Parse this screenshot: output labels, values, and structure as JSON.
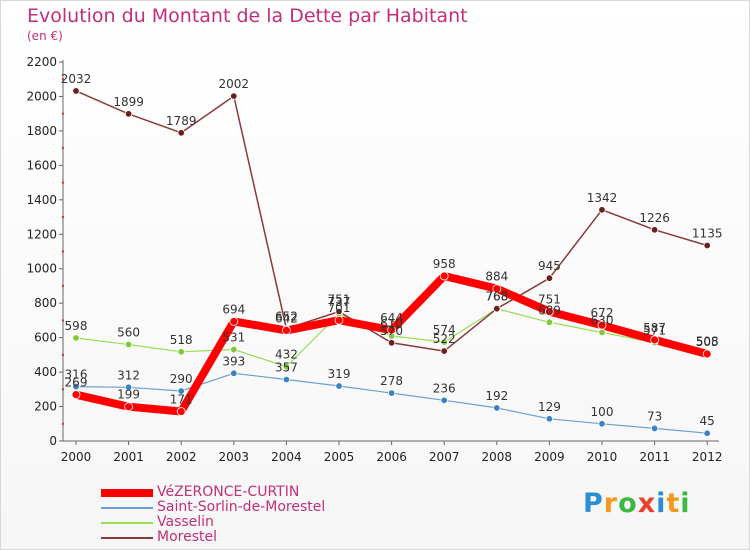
{
  "title": "Evolution du Montant de la Dette par Habitant",
  "subtitle": "(en €)",
  "chart_data": {
    "type": "line",
    "title": "Evolution du Montant de la Dette par Habitant",
    "subtitle": "(en €)",
    "x": [
      "2000",
      "2001",
      "2002",
      "2003",
      "2004",
      "2005",
      "2006",
      "2007",
      "2008",
      "2009",
      "2010",
      "2011",
      "2012"
    ],
    "y_ticks": [
      "0",
      "200",
      "400",
      "600",
      "800",
      "1000",
      "1200",
      "1400",
      "1600",
      "1800",
      "2000",
      "2200"
    ],
    "ylim": [
      0,
      2200
    ],
    "grid": false,
    "legend_position": "bottom-left",
    "series": [
      {
        "name": "VéZERONCE-CURTIN",
        "color": "#ff0000",
        "values": [
          269,
          199,
          171,
          694,
          642,
          701,
          644,
          958,
          884,
          751,
          672,
          587,
          505
        ],
        "labels": [
          "269",
          "199",
          "171",
          "694",
          "642",
          "701",
          "644",
          "958",
          "884",
          "751",
          "672",
          "587",
          "505"
        ]
      },
      {
        "name": "Saint-Sorlin-de-Morestel",
        "color": "#6b9fd3",
        "values": [
          316,
          312,
          290,
          393,
          357,
          319,
          278,
          236,
          192,
          129,
          100,
          73,
          45
        ],
        "labels": [
          "316",
          "312",
          "290",
          "393",
          "357",
          "319",
          "278",
          "236",
          "192",
          "129",
          "100",
          "73",
          "45"
        ]
      },
      {
        "name": "Vasselin",
        "color": "#99dd55",
        "values": [
          598,
          560,
          518,
          531,
          432,
          737,
          610,
          574,
          768,
          689,
          630,
          571,
          508
        ],
        "labels": [
          "598",
          "560",
          "518",
          "531",
          "432",
          "737",
          "610",
          "574",
          "768",
          "689",
          "630",
          "571",
          "508"
        ]
      },
      {
        "name": "Morestel",
        "color": "#8b3a3a",
        "values": [
          2032,
          1899,
          1789,
          2002,
          652,
          751,
          570,
          522,
          768,
          945,
          1342,
          1226,
          1135
        ],
        "labels": [
          "2032",
          "1899",
          "1789",
          "2002",
          "652",
          "751",
          "570",
          "522",
          "768",
          "945",
          "1342",
          "1226",
          "1135"
        ]
      }
    ]
  },
  "logo": {
    "letters": [
      "P",
      "r",
      "o",
      "x",
      "i",
      "t",
      "i"
    ],
    "colors": [
      "#2b8fd4",
      "#f39a1e",
      "#3cb843",
      "#e8402b",
      "#2b8fd4",
      "#f39a1e",
      "#3cb843"
    ]
  }
}
